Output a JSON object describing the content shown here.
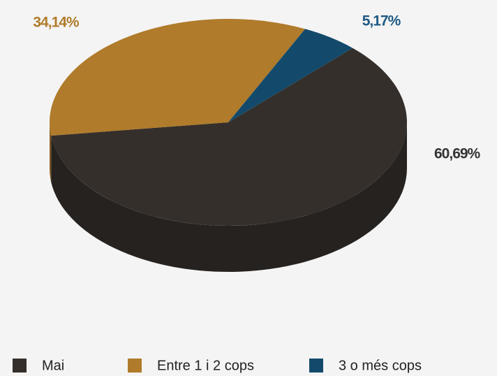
{
  "chart_data": {
    "type": "pie",
    "categories": [
      "Mai",
      "Entre 1 i 2 cops",
      "3 o més cops"
    ],
    "values": [
      60.69,
      34.14,
      5.17
    ],
    "value_labels": [
      "60,69%",
      "34,14%",
      "5,17%"
    ],
    "colors": [
      "#352f2b",
      "#b07b2b",
      "#134a6b"
    ],
    "label_colors": [
      "#333333",
      "#b07b2b",
      "#1e5a85"
    ],
    "legend": "bottom"
  }
}
